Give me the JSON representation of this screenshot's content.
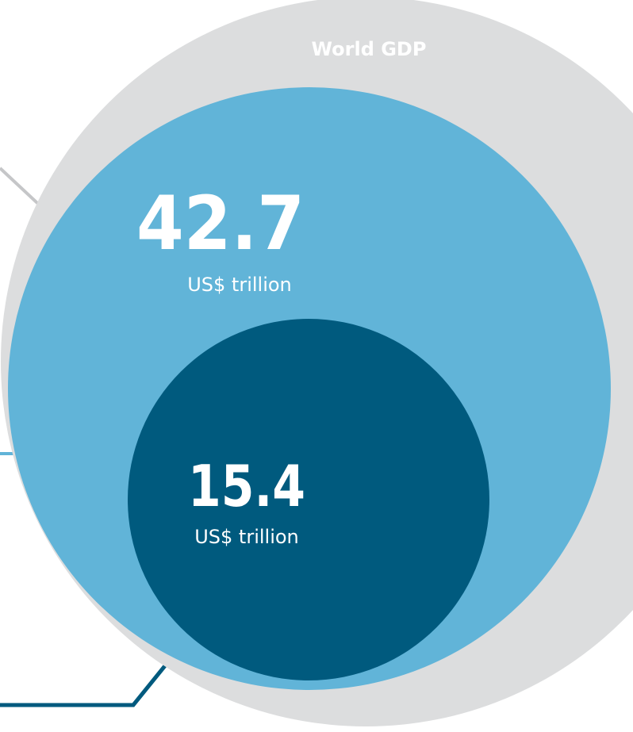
{
  "chart_data": {
    "type": "nested-circles",
    "title": "World GDP",
    "series": [
      {
        "value": 42.7,
        "value_label": "42.7",
        "unit": "US$ trillion"
      },
      {
        "value": 15.4,
        "value_label": "15.4",
        "unit": "US$ trillion"
      }
    ],
    "colors": {
      "outer": "#DCDDDE",
      "middle": "#61B4D8",
      "inner": "#005A7E",
      "leader_gray": "#C5C6C8",
      "leader_light": "#61B4D8",
      "leader_dark": "#005A7E",
      "text": "#FFFFFF"
    }
  }
}
